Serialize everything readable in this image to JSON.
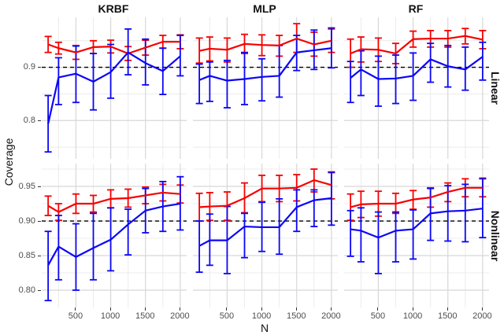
{
  "figure": {
    "ylabel": "Coverage",
    "xlabel": "N",
    "col_titles": [
      "KRBF",
      "MLP",
      "RF"
    ],
    "row_titles": [
      "Linear",
      "Nonlinear"
    ]
  },
  "chart_data": {
    "type": "line",
    "description": "Faceted coverage curves with error bars; red and blue series per panel; dashed reference line at 0.9",
    "x": [
      100,
      250,
      500,
      750,
      1000,
      1250,
      1500,
      1750,
      2000
    ],
    "x_ticks": [
      500,
      1000,
      1500,
      2000
    ],
    "x_tick_labels": [
      "500",
      "1000",
      "1500",
      "2000"
    ],
    "x_minor": [
      250,
      750,
      1250,
      1750
    ],
    "xlim": [
      8,
      2092
    ],
    "hline": 0.9,
    "colors": {
      "red": "#f60000",
      "blue": "#0b06f5"
    },
    "grid": {
      "major": "#d8d8d8",
      "minor": "#ececec"
    },
    "rows": [
      {
        "label": "Linear",
        "ylim": [
          0.728,
          0.994
        ],
        "y_ticks": [
          0.9,
          0.8
        ],
        "y_tick_labels": [
          "0.9",
          "0.8"
        ],
        "y_minor": [
          0.95,
          0.85,
          0.75
        ],
        "panels": [
          {
            "col": "KRBF",
            "red": {
              "y": [
                0.943,
                0.936,
                0.928,
                0.938,
                0.939,
                0.926,
                0.937,
                0.948,
                0.948
              ],
              "lo": [
                0.928,
                0.925,
                0.915,
                0.926,
                0.927,
                0.913,
                0.923,
                0.936,
                0.935
              ],
              "hi": [
                0.958,
                0.947,
                0.941,
                0.95,
                0.951,
                0.939,
                0.951,
                0.96,
                0.961
              ]
            },
            "blue": {
              "y": [
                0.794,
                0.881,
                0.888,
                0.873,
                0.891,
                0.928,
                0.908,
                0.893,
                0.921
              ],
              "lo": [
                0.741,
                0.83,
                0.834,
                0.82,
                0.842,
                0.886,
                0.867,
                0.849,
                0.884
              ],
              "hi": [
                0.847,
                0.918,
                0.94,
                0.926,
                0.943,
                0.972,
                0.953,
                0.936,
                0.96
              ]
            }
          },
          {
            "col": "MLP",
            "red": {
              "y": [
                0.931,
                0.935,
                0.933,
                0.944,
                0.942,
                0.941,
                0.954,
                0.943,
                0.95
              ],
              "lo": [
                0.908,
                0.912,
                0.91,
                0.926,
                0.922,
                0.921,
                0.928,
                0.921,
                0.928
              ],
              "hi": [
                0.955,
                0.957,
                0.955,
                0.962,
                0.961,
                0.96,
                0.982,
                0.966,
                0.972
              ]
            },
            "blue": {
              "y": [
                0.876,
                0.884,
                0.875,
                0.878,
                0.882,
                0.884,
                0.928,
                0.932,
                0.936
              ],
              "lo": [
                0.832,
                0.836,
                0.824,
                0.83,
                0.837,
                0.844,
                0.894,
                0.896,
                0.899
              ],
              "hi": [
                0.906,
                0.91,
                0.913,
                0.928,
                0.916,
                0.941,
                0.96,
                0.97,
                0.974
              ]
            }
          },
          {
            "col": "RF",
            "red": {
              "y": [
                0.926,
                0.934,
                0.933,
                0.926,
                0.953,
                0.954,
                0.954,
                0.959,
                0.952
              ],
              "lo": [
                0.9,
                0.91,
                0.911,
                0.907,
                0.938,
                0.938,
                0.938,
                0.944,
                0.935
              ],
              "hi": [
                0.953,
                0.957,
                0.955,
                0.945,
                0.968,
                0.969,
                0.969,
                0.973,
                0.969
              ]
            },
            "blue": {
              "y": [
                0.88,
                0.896,
                0.878,
                0.879,
                0.884,
                0.915,
                0.902,
                0.896,
                0.92
              ],
              "lo": [
                0.834,
                0.847,
                0.827,
                0.832,
                0.838,
                0.872,
                0.863,
                0.857,
                0.876
              ],
              "hi": [
                0.911,
                0.931,
                0.921,
                0.923,
                0.927,
                0.945,
                0.941,
                0.938,
                0.947
              ]
            }
          }
        ]
      },
      {
        "label": "Nonlinear",
        "ylim": [
          0.775,
          0.983
        ],
        "y_ticks": [
          0.95,
          0.9,
          0.85,
          0.8
        ],
        "y_tick_labels": [
          "0.95",
          "0.90",
          "0.85",
          "0.80"
        ],
        "y_minor": [
          0.975,
          0.925,
          0.875,
          0.825
        ],
        "panels": [
          {
            "col": "KRBF",
            "red": {
              "y": [
                0.922,
                0.913,
                0.925,
                0.925,
                0.932,
                0.933,
                0.937,
                0.941,
                0.939
              ],
              "lo": [
                0.908,
                0.901,
                0.911,
                0.913,
                0.919,
                0.92,
                0.925,
                0.929,
                0.926
              ],
              "hi": [
                0.936,
                0.925,
                0.939,
                0.937,
                0.945,
                0.946,
                0.949,
                0.953,
                0.952
              ]
            },
            "blue": {
              "y": [
                0.836,
                0.863,
                0.848,
                0.861,
                0.873,
                0.895,
                0.915,
                0.921,
                0.925
              ],
              "lo": [
                0.785,
                0.815,
                0.8,
                0.815,
                0.828,
                0.851,
                0.883,
                0.885,
                0.887
              ],
              "hi": [
                0.885,
                0.908,
                0.896,
                0.911,
                0.919,
                0.917,
                0.947,
                0.957,
                0.964
              ]
            }
          },
          {
            "col": "MLP",
            "red": {
              "y": [
                0.92,
                0.921,
                0.922,
                0.933,
                0.947,
                0.947,
                0.948,
                0.959,
                0.952
              ],
              "lo": [
                0.9,
                0.901,
                0.901,
                0.912,
                0.928,
                0.928,
                0.929,
                0.942,
                0.932
              ],
              "hi": [
                0.94,
                0.941,
                0.942,
                0.955,
                0.966,
                0.966,
                0.967,
                0.975,
                0.971
              ]
            },
            "blue": {
              "y": [
                0.864,
                0.872,
                0.872,
                0.892,
                0.891,
                0.891,
                0.92,
                0.93,
                0.933
              ],
              "lo": [
                0.826,
                0.836,
                0.824,
                0.847,
                0.856,
                0.852,
                0.885,
                0.892,
                0.894
              ],
              "hi": [
                0.9,
                0.91,
                0.921,
                0.911,
                0.927,
                0.932,
                0.945,
                0.945,
                0.97
              ]
            }
          },
          {
            "col": "RF",
            "red": {
              "y": [
                0.92,
                0.924,
                0.925,
                0.925,
                0.931,
                0.934,
                0.942,
                0.948,
                0.948
              ],
              "lo": [
                0.901,
                0.905,
                0.907,
                0.911,
                0.917,
                0.92,
                0.928,
                0.935,
                0.935
              ],
              "hi": [
                0.939,
                0.943,
                0.943,
                0.94,
                0.944,
                0.948,
                0.955,
                0.961,
                0.962
              ]
            },
            "blue": {
              "y": [
                0.888,
                0.886,
                0.876,
                0.886,
                0.888,
                0.911,
                0.914,
                0.915,
                0.918
              ],
              "lo": [
                0.849,
                0.841,
                0.824,
                0.841,
                0.845,
                0.872,
                0.871,
                0.87,
                0.876
              ],
              "hi": [
                0.915,
                0.919,
                0.913,
                0.913,
                0.916,
                0.947,
                0.951,
                0.953,
                0.961
              ]
            }
          }
        ]
      }
    ]
  }
}
